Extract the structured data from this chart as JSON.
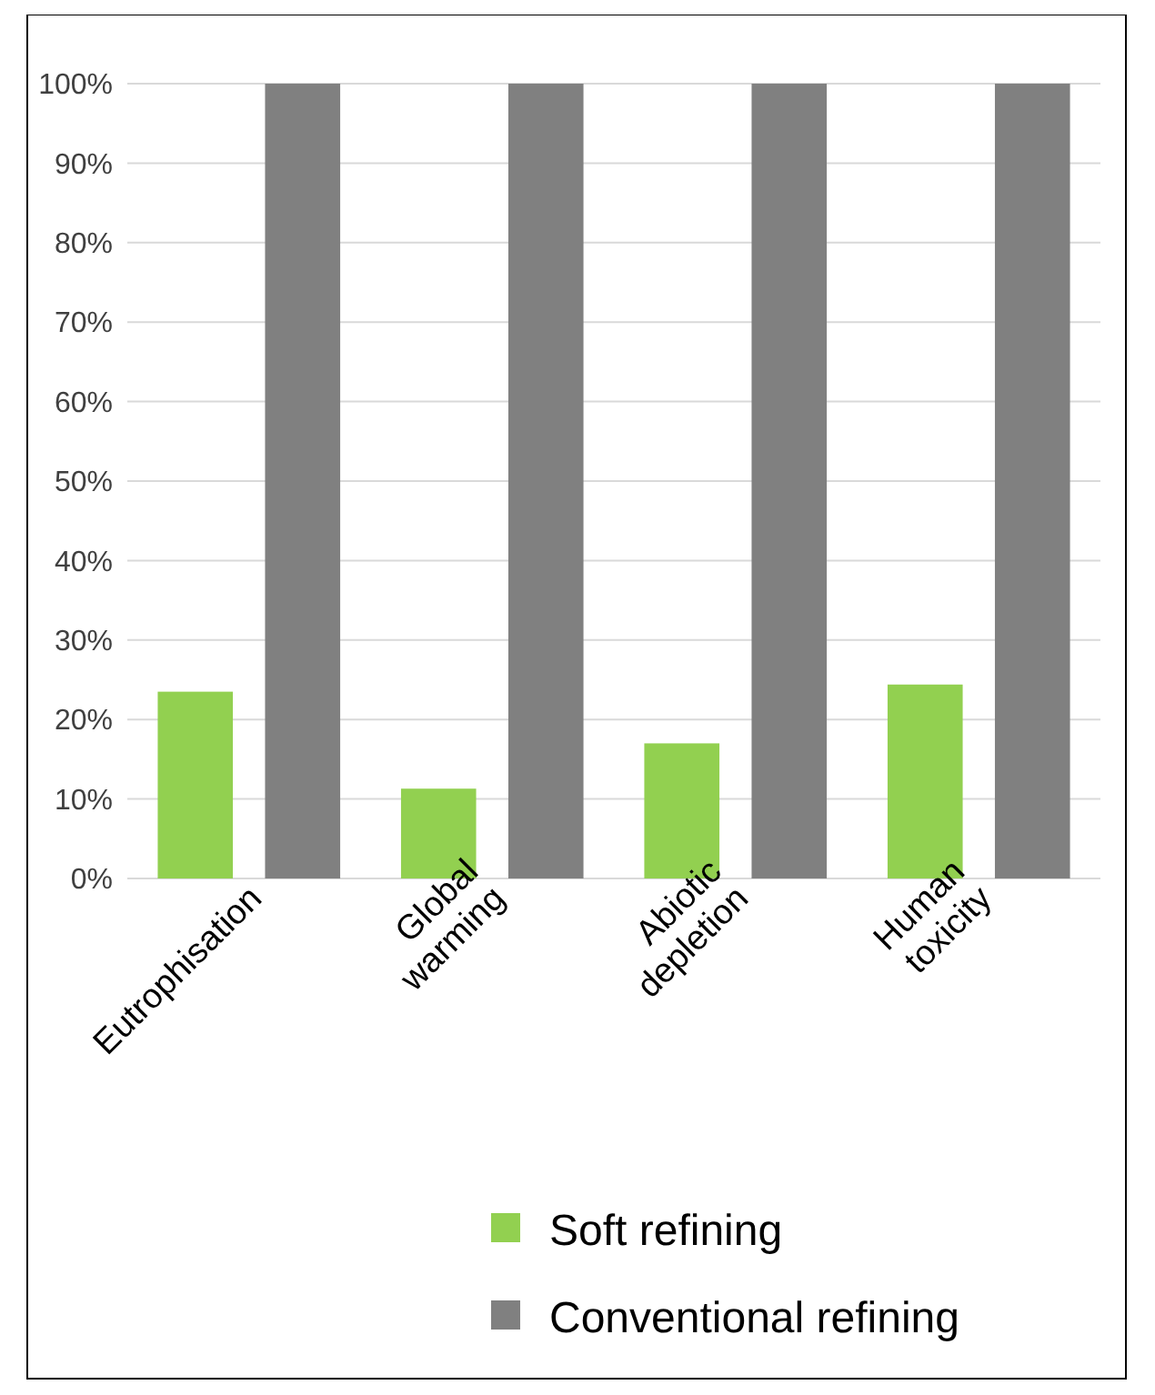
{
  "chart_data": {
    "type": "bar",
    "categories": [
      "Eutrophisation",
      "Global warming",
      "Abiotic depletion",
      "Human toxicity"
    ],
    "series": [
      {
        "name": "Soft refining",
        "color": "#92d050",
        "values": [
          23.5,
          11.3,
          17,
          24.4
        ]
      },
      {
        "name": "Conventional refining",
        "color": "#808080",
        "values": [
          100,
          100,
          100,
          100
        ]
      }
    ],
    "ylim": [
      0,
      100
    ],
    "yticks": [
      {
        "value": 0,
        "label": "0%"
      },
      {
        "value": 10,
        "label": "10%"
      },
      {
        "value": 20,
        "label": "20%"
      },
      {
        "value": 30,
        "label": "30%"
      },
      {
        "value": 40,
        "label": "40%"
      },
      {
        "value": 50,
        "label": "50%"
      },
      {
        "value": 60,
        "label": "60%"
      },
      {
        "value": 70,
        "label": "70%"
      },
      {
        "value": 80,
        "label": "80%"
      },
      {
        "value": 90,
        "label": "90%"
      },
      {
        "value": 100,
        "label": "100%"
      }
    ],
    "grid": "y",
    "legend": "bottom"
  }
}
